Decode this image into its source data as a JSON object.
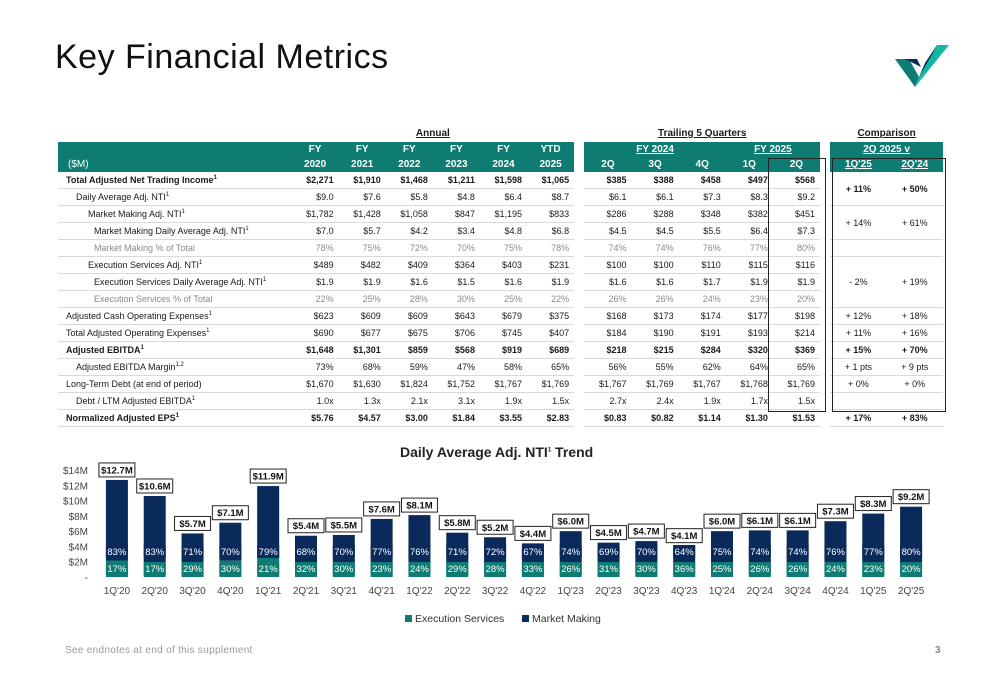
{
  "page": {
    "title": "Key Financial Metrics",
    "footnote": "See endnotes at end of this supplement",
    "page_number": "3"
  },
  "table": {
    "groups": {
      "annual": "Annual",
      "trailing": "Trailing 5 Quarters",
      "comparison": "Comparison"
    },
    "header1": [
      "FY",
      "FY",
      "FY",
      "FY",
      "FY",
      "YTD",
      "",
      "FY 2024",
      "",
      "FY 2025",
      "",
      "2Q 2025 v"
    ],
    "header2": [
      "2020",
      "2021",
      "2022",
      "2023",
      "2024",
      "2025",
      "2Q",
      "3Q",
      "4Q",
      "1Q",
      "2Q",
      "1Q'25",
      "2Q'24"
    ],
    "unit_label": "($M)",
    "rows": [
      {
        "label": "Total Adjusted Net Trading Income",
        "sup": "1",
        "style": "bold",
        "values": [
          "$2,271",
          "$1,910",
          "$1,468",
          "$1,211",
          "$1,598",
          "$1,065",
          "$385",
          "$388",
          "$458",
          "$497",
          "$568"
        ],
        "cmp": [
          "+ 11%",
          "+ 50%"
        ],
        "span": 2
      },
      {
        "label": "Daily Average Adj. NTI",
        "sup": "1",
        "style": "indent1",
        "values": [
          "$9.0",
          "$7.6",
          "$5.8",
          "$4.8",
          "$6.4",
          "$8.7",
          "$6.1",
          "$6.1",
          "$7.3",
          "$8.3",
          "$9.2"
        ]
      },
      {
        "label": "Market Making Adj. NTI",
        "sup": "1",
        "style": "indent2",
        "values": [
          "$1,782",
          "$1,428",
          "$1,058",
          "$847",
          "$1,195",
          "$833",
          "$286",
          "$288",
          "$348",
          "$382",
          "$451"
        ],
        "cmp": [
          "+ 14%",
          "+ 61%"
        ],
        "span": 2
      },
      {
        "label": "Market Making Daily Average Adj. NTI",
        "sup": "1",
        "style": "indent3",
        "values": [
          "$7.0",
          "$5.7",
          "$4.2",
          "$3.4",
          "$4.8",
          "$6.8",
          "$4.5",
          "$4.5",
          "$5.5",
          "$6.4",
          "$7.3"
        ]
      },
      {
        "label": "Market Making % of Total",
        "sup": "",
        "style": "indent3 grey",
        "values": [
          "78%",
          "75%",
          "72%",
          "70%",
          "75%",
          "78%",
          "74%",
          "74%",
          "76%",
          "77%",
          "80%"
        ],
        "cmp": [
          "",
          ""
        ],
        "span": 1
      },
      {
        "label": "Execution Services Adj. NTI",
        "sup": "1",
        "style": "indent2",
        "values": [
          "$489",
          "$482",
          "$409",
          "$364",
          "$403",
          "$231",
          "$100",
          "$100",
          "$110",
          "$115",
          "$116"
        ],
        "cmp": [
          "- 2%",
          "+ 19%"
        ],
        "span": 3
      },
      {
        "label": "Execution Services Daily Average Adj. NTI",
        "sup": "1",
        "style": "indent3",
        "values": [
          "$1.9",
          "$1.9",
          "$1.6",
          "$1.5",
          "$1.6",
          "$1.9",
          "$1.6",
          "$1.6",
          "$1.7",
          "$1.9",
          "$1.9"
        ]
      },
      {
        "label": "Execution Services % of Total",
        "sup": "",
        "style": "indent3 grey",
        "values": [
          "22%",
          "25%",
          "28%",
          "30%",
          "25%",
          "22%",
          "26%",
          "26%",
          "24%",
          "23%",
          "20%"
        ]
      },
      {
        "label": "Adjusted Cash Operating Expenses",
        "sup": "1",
        "style": "sec",
        "values": [
          "$623",
          "$609",
          "$609",
          "$643",
          "$679",
          "$375",
          "$168",
          "$173",
          "$174",
          "$177",
          "$198"
        ],
        "cmp": [
          "+ 12%",
          "+ 18%"
        ],
        "span": 1
      },
      {
        "label": "Total Adjusted Operating Expenses",
        "sup": "1",
        "style": "",
        "values": [
          "$690",
          "$677",
          "$675",
          "$706",
          "$745",
          "$407",
          "$184",
          "$190",
          "$191",
          "$193",
          "$214"
        ],
        "cmp": [
          "+ 11%",
          "+ 16%"
        ],
        "span": 1
      },
      {
        "label": "Adjusted EBITDA",
        "sup": "1",
        "style": "bold",
        "values": [
          "$1,648",
          "$1,301",
          "$859",
          "$568",
          "$919",
          "$689",
          "$218",
          "$215",
          "$284",
          "$320",
          "$369"
        ],
        "cmp": [
          "+ 15%",
          "+ 70%"
        ],
        "span": 1
      },
      {
        "label": "Adjusted EBITDA Margin",
        "sup": "1,2",
        "style": "indent1",
        "values": [
          "73%",
          "68%",
          "59%",
          "47%",
          "58%",
          "65%",
          "56%",
          "55%",
          "62%",
          "64%",
          "65%"
        ],
        "cmp": [
          "+ 1 pts",
          "+ 9 pts"
        ],
        "span": 1
      },
      {
        "label": "Long-Term Debt (at end of period)",
        "sup": "",
        "style": "sec",
        "values": [
          "$1,670",
          "$1,630",
          "$1,824",
          "$1,752",
          "$1,767",
          "$1,769",
          "$1,767",
          "$1,769",
          "$1,767",
          "$1,768",
          "$1,769"
        ],
        "cmp": [
          "+ 0%",
          "+ 0%"
        ],
        "span": 1
      },
      {
        "label": "Debt / LTM Adjusted EBITDA",
        "sup": "1",
        "style": "indent1",
        "values": [
          "1.0x",
          "1.3x",
          "2.1x",
          "3.1x",
          "1.9x",
          "1.5x",
          "2.7x",
          "2.4x",
          "1.9x",
          "1.7x",
          "1.5x"
        ],
        "cmp": [
          "",
          ""
        ],
        "span": 1
      },
      {
        "label": "Normalized Adjusted EPS",
        "sup": "1",
        "style": "bold sec",
        "values": [
          "$5.76",
          "$4.57",
          "$3.00",
          "$1.84",
          "$3.55",
          "$2.83",
          "$0.83",
          "$0.82",
          "$1.14",
          "$1.30",
          "$1.53"
        ],
        "cmp": [
          "+ 17%",
          "+ 83%"
        ],
        "span": 1
      }
    ]
  },
  "chart_data": {
    "type": "bar",
    "stacked": true,
    "title": "Daily Average Adj. NTI",
    "title_sup": "1",
    "title_suffix": " Trend",
    "categories": [
      "1Q'20",
      "2Q'20",
      "3Q'20",
      "4Q'20",
      "1Q'21",
      "2Q'21",
      "3Q'21",
      "4Q'21",
      "1Q'22",
      "2Q'22",
      "3Q'22",
      "4Q'22",
      "1Q'23",
      "2Q'23",
      "3Q'23",
      "4Q'23",
      "1Q'24",
      "2Q'24",
      "3Q'24",
      "4Q'24",
      "1Q'25",
      "2Q'25"
    ],
    "totals": [
      12.7,
      10.6,
      5.7,
      7.1,
      11.9,
      5.4,
      5.5,
      7.6,
      8.1,
      5.8,
      5.2,
      4.4,
      6.0,
      4.5,
      4.7,
      4.1,
      6.0,
      6.1,
      6.1,
      7.3,
      8.3,
      9.2
    ],
    "total_labels": [
      "$12.7M",
      "$10.6M",
      "$5.7M",
      "$7.1M",
      "$11.9M",
      "$5.4M",
      "$5.5M",
      "$7.6M",
      "$8.1M",
      "$5.8M",
      "$5.2M",
      "$4.4M",
      "$6.0M",
      "$4.5M",
      "$4.7M",
      "$4.1M",
      "$6.0M",
      "$6.1M",
      "$6.1M",
      "$7.3M",
      "$8.3M",
      "$9.2M"
    ],
    "series": [
      {
        "name": "Execution Services",
        "color": "#0e7c72",
        "pct_labels": [
          "17%",
          "17%",
          "29%",
          "30%",
          "21%",
          "32%",
          "30%",
          "23%",
          "24%",
          "29%",
          "28%",
          "33%",
          "26%",
          "31%",
          "30%",
          "36%",
          "25%",
          "26%",
          "26%",
          "24%",
          "23%",
          "20%"
        ]
      },
      {
        "name": "Market Making",
        "color": "#0a2a5c",
        "pct_labels": [
          "83%",
          "83%",
          "71%",
          "70%",
          "79%",
          "68%",
          "70%",
          "77%",
          "76%",
          "71%",
          "72%",
          "67%",
          "74%",
          "69%",
          "70%",
          "64%",
          "75%",
          "74%",
          "74%",
          "76%",
          "77%",
          "80%"
        ]
      }
    ],
    "ylim": [
      0,
      14
    ],
    "yticks": [
      "-",
      "$2M",
      "$4M",
      "$6M",
      "$8M",
      "$10M",
      "$12M",
      "$14M"
    ],
    "legend": "bottom"
  }
}
